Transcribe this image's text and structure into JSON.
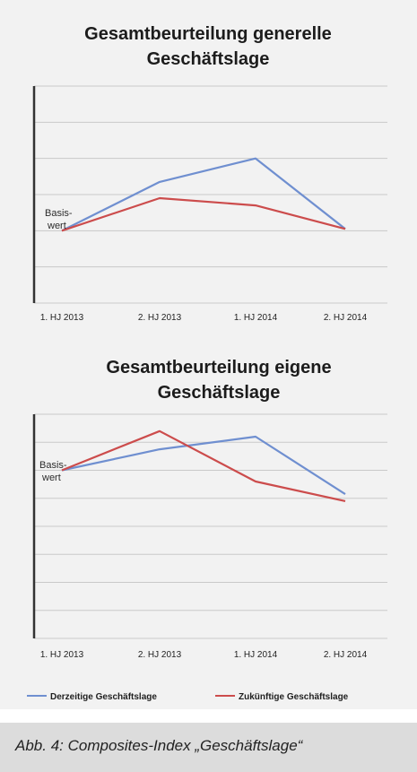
{
  "chart_data": [
    {
      "type": "line",
      "title": [
        "Gesamtbeurteilung generelle",
        "Geschäftslage"
      ],
      "categories": [
        "1. HJ 2013",
        "2. HJ 2013",
        "1. HJ 2014",
        "2. HJ 2014"
      ],
      "annotation": [
        "Basis-",
        "wert"
      ],
      "ylim": [
        -1,
        5
      ],
      "grid": true,
      "series": [
        {
          "name": "Derzeitige Geschäftslage",
          "color": "#6f8fd0",
          "values": [
            1,
            2.35,
            3.0,
            1.05
          ]
        },
        {
          "name": "Zukünftige Geschäftslage",
          "color": "#cc4c4c",
          "values": [
            1,
            1.9,
            1.7,
            1.05
          ]
        }
      ]
    },
    {
      "type": "line",
      "title": [
        "Gesamtbeurteilung eigene",
        "Geschäftslage"
      ],
      "categories": [
        "1. HJ 2013",
        "2. HJ 2013",
        "1. HJ 2014",
        "2. HJ 2014"
      ],
      "annotation": [
        "Basis-",
        "wert"
      ],
      "ylim": [
        -5,
        3
      ],
      "grid": true,
      "series": [
        {
          "name": "Derzeitige Geschäftslage",
          "color": "#6f8fd0",
          "values": [
            1,
            1.75,
            2.2,
            0.15
          ]
        },
        {
          "name": "Zukünftige Geschäftslage",
          "color": "#cc4c4c",
          "values": [
            1,
            2.4,
            0.6,
            -0.1
          ]
        }
      ]
    }
  ],
  "legend": [
    {
      "label": "Derzeitige Geschäftslage",
      "color": "#6f8fd0"
    },
    {
      "label": "Zukünftige Geschäftslage",
      "color": "#cc4c4c"
    }
  ],
  "caption": "Abb. 4: Composites-Index „Geschäftslage“"
}
